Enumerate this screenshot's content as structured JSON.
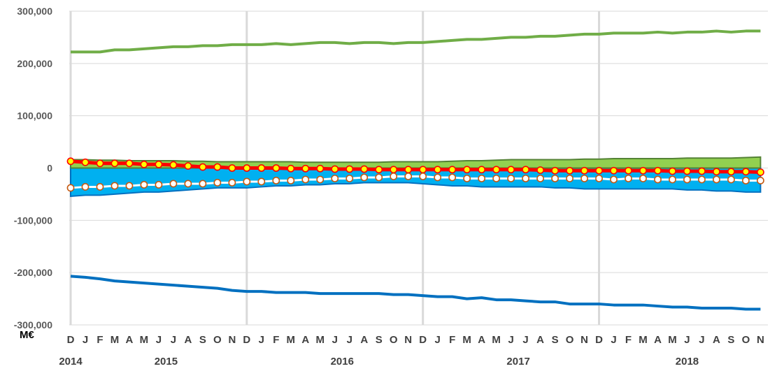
{
  "chart_data": {
    "type": "line",
    "unit_label": "M€",
    "ylim": [
      -300000,
      300000
    ],
    "yticks": [
      300000,
      200000,
      100000,
      0,
      -100000,
      -200000,
      -300000
    ],
    "ytick_labels": [
      "300,000",
      "200,000",
      "100,000",
      "0",
      "-100,000",
      "-200,000",
      "-300,000"
    ],
    "grid": true,
    "x_months": [
      "D",
      "J",
      "F",
      "M",
      "A",
      "M",
      "J",
      "J",
      "A",
      "S",
      "O",
      "N",
      "D",
      "J",
      "F",
      "M",
      "A",
      "M",
      "J",
      "J",
      "A",
      "S",
      "O",
      "N",
      "D",
      "J",
      "F",
      "M",
      "A",
      "M",
      "J",
      "J",
      "A",
      "S",
      "O",
      "N",
      "D",
      "J",
      "F",
      "M",
      "A",
      "M",
      "J",
      "J",
      "A",
      "S",
      "O",
      "N"
    ],
    "years": [
      "2014",
      "2015",
      "2016",
      "2017",
      "2018"
    ],
    "year_starts": [
      0,
      1,
      13,
      25,
      37
    ],
    "year_separators_after_index": [
      12,
      24,
      36
    ],
    "colors": {
      "upper_line": "#70AD47",
      "green_area": "#92D050",
      "green_area_edge": "#548235",
      "blue_area": "#00B0F0",
      "blue_area_edge": "#0070C0",
      "lower_line": "#0070C0",
      "red_line": "#FF0000",
      "red_marker_fill": "#FFFF00",
      "white_marker_fill": "#FFFFFF",
      "white_marker_edge": "#C55A11",
      "separator": "#D9D9D9"
    },
    "series": [
      {
        "kind": "line",
        "color": "#70AD47",
        "values": [
          222000,
          222000,
          222000,
          226000,
          226000,
          228000,
          230000,
          232000,
          232000,
          234000,
          234000,
          236000,
          236000,
          236000,
          238000,
          236000,
          238000,
          240000,
          240000,
          238000,
          240000,
          240000,
          238000,
          240000,
          240000,
          242000,
          244000,
          246000,
          246000,
          248000,
          250000,
          250000,
          252000,
          252000,
          254000,
          256000,
          256000,
          258000,
          258000,
          258000,
          260000,
          258000,
          260000,
          260000,
          262000,
          260000,
          262000,
          262000
        ]
      },
      {
        "kind": "area",
        "color": "#92D050",
        "values": [
          16000,
          16000,
          15000,
          15000,
          14000,
          14000,
          14000,
          14000,
          13000,
          13000,
          12000,
          12000,
          12000,
          12000,
          12000,
          12000,
          11000,
          11000,
          11000,
          11000,
          11000,
          11000,
          12000,
          12000,
          12000,
          12000,
          13000,
          14000,
          14000,
          15000,
          16000,
          16000,
          16000,
          16000,
          16000,
          17000,
          17000,
          18000,
          18000,
          18000,
          18000,
          18000,
          19000,
          19000,
          19000,
          19000,
          20000,
          21000
        ]
      },
      {
        "kind": "line_markers",
        "color": "#FF0000",
        "values": [
          13000,
          11000,
          9000,
          9000,
          9000,
          7000,
          7000,
          6000,
          4000,
          2000,
          2000,
          0,
          0,
          0,
          0,
          -1000,
          -1000,
          -1000,
          -2000,
          -2000,
          -2000,
          -3000,
          -3000,
          -3000,
          -3000,
          -3000,
          -3000,
          -3000,
          -3000,
          -3000,
          -3000,
          -3000,
          -4000,
          -5000,
          -5000,
          -5000,
          -5000,
          -5000,
          -5000,
          -5000,
          -5000,
          -6000,
          -6000,
          -6000,
          -7000,
          -7000,
          -7000,
          -8000
        ]
      },
      {
        "kind": "area",
        "color": "#00B0F0",
        "values": [
          -54000,
          -52000,
          -52000,
          -50000,
          -48000,
          -46000,
          -46000,
          -44000,
          -42000,
          -40000,
          -38000,
          -38000,
          -38000,
          -36000,
          -34000,
          -34000,
          -32000,
          -32000,
          -30000,
          -30000,
          -28000,
          -28000,
          -28000,
          -28000,
          -30000,
          -32000,
          -34000,
          -34000,
          -36000,
          -36000,
          -36000,
          -36000,
          -36000,
          -38000,
          -38000,
          -40000,
          -40000,
          -40000,
          -40000,
          -40000,
          -40000,
          -40000,
          -42000,
          -42000,
          -44000,
          -44000,
          -46000,
          -46000
        ]
      },
      {
        "kind": "line_markers",
        "color": "#FFFFFF",
        "values": [
          -38000,
          -36000,
          -36000,
          -34000,
          -34000,
          -32000,
          -32000,
          -30000,
          -30000,
          -30000,
          -28000,
          -28000,
          -26000,
          -26000,
          -24000,
          -24000,
          -22000,
          -22000,
          -20000,
          -20000,
          -18000,
          -18000,
          -16000,
          -16000,
          -16000,
          -18000,
          -18000,
          -20000,
          -20000,
          -20000,
          -20000,
          -20000,
          -20000,
          -20000,
          -20000,
          -20000,
          -20000,
          -22000,
          -20000,
          -20000,
          -22000,
          -22000,
          -22000,
          -22000,
          -22000,
          -22000,
          -24000,
          -24000
        ]
      },
      {
        "kind": "line",
        "color": "#0070C0",
        "values": [
          -207000,
          -209000,
          -212000,
          -216000,
          -218000,
          -220000,
          -222000,
          -224000,
          -226000,
          -228000,
          -230000,
          -234000,
          -236000,
          -236000,
          -238000,
          -238000,
          -238000,
          -240000,
          -240000,
          -240000,
          -240000,
          -240000,
          -242000,
          -242000,
          -244000,
          -246000,
          -246000,
          -250000,
          -248000,
          -252000,
          -252000,
          -254000,
          -256000,
          -256000,
          -260000,
          -260000,
          -260000,
          -262000,
          -262000,
          -262000,
          -264000,
          -266000,
          -266000,
          -268000,
          -268000,
          -268000,
          -270000,
          -270000
        ]
      }
    ]
  }
}
